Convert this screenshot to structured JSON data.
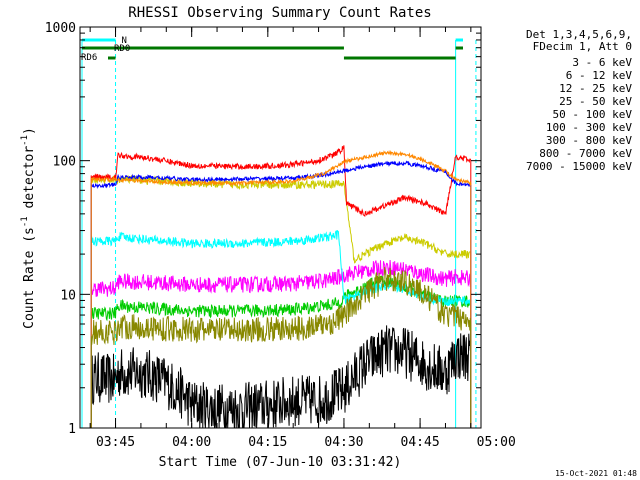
{
  "chart_data": {
    "type": "line",
    "title": "RHESSI Observing Summary Count Rates",
    "xlabel": "Start Time (07-Jun-10 03:31:42)",
    "ylabel_main": "Count Rate (s",
    "ylabel_sup1": "-1",
    "ylabel_mid": " detector",
    "ylabel_sup2": "-1",
    "ylabel_end": ")",
    "yscale": "log",
    "ylim": [
      1,
      1000
    ],
    "xlim": [
      -2,
      77
    ],
    "x_unit": "minutes after 03:40",
    "x_ticks": [
      {
        "label": "03:45",
        "x": 5
      },
      {
        "label": "04:00",
        "x": 20
      },
      {
        "label": "04:15",
        "x": 35
      },
      {
        "label": "04:30",
        "x": 50
      },
      {
        "label": "04:45",
        "x": 65
      },
      {
        "label": "05:00",
        "x": 80
      }
    ],
    "y_ticks": [
      {
        "label": "1",
        "y": 1
      },
      {
        "label": "10",
        "y": 10
      },
      {
        "label": "100",
        "y": 100
      },
      {
        "label": "1000",
        "y": 1000
      }
    ],
    "legend": {
      "placement": "right",
      "header1": "Det 1,3,4,5,6,9,",
      "header2": "FDecim 1, Att 0",
      "entries": [
        {
          "label": "3 - 6 keV",
          "color": "#000000"
        },
        {
          "label": "6 - 12 keV",
          "color": "#ff00ff"
        },
        {
          "label": "12 - 25 keV",
          "color": "#00cc00"
        },
        {
          "label": "25 - 50 keV",
          "color": "#00ffff"
        },
        {
          "label": "50 - 100 keV",
          "color": "#cccc00"
        },
        {
          "label": "100 - 300 keV",
          "color": "#ff0000"
        },
        {
          "label": "300 - 800 keV",
          "color": "#0000ff"
        },
        {
          "label": "800 - 7000 keV",
          "color": "#ff8800"
        },
        {
          "label": "7000 - 15000 keV",
          "color": "#888800"
        }
      ]
    },
    "flags": {
      "n_label": "N",
      "rd0_label": "RD0",
      "rd6_label": "RD6",
      "night_color": "#00ffff",
      "rd_color": "#007700"
    },
    "series": [
      {
        "name": "3 - 6 keV",
        "color": "#000000",
        "noise": 0.45,
        "points": [
          [
            0.2,
            2.3
          ],
          [
            1,
            2.4
          ],
          [
            4,
            2.3
          ],
          [
            5,
            2.3
          ],
          [
            5.5,
            2.6
          ],
          [
            10,
            2.6
          ],
          [
            13,
            2.4
          ],
          [
            15,
            2.2
          ],
          [
            18,
            1.8
          ],
          [
            20,
            1.5
          ],
          [
            24,
            1.4
          ],
          [
            30,
            1.4
          ],
          [
            36,
            1.5
          ],
          [
            40,
            1.6
          ],
          [
            45,
            1.6
          ],
          [
            47,
            1.7
          ],
          [
            50,
            1.9
          ],
          [
            54,
            3.0
          ],
          [
            58,
            3.8
          ],
          [
            62,
            3.7
          ],
          [
            66,
            3.0
          ],
          [
            70,
            2.6
          ],
          [
            72,
            3.5
          ],
          [
            75,
            3.5
          ]
        ]
      },
      {
        "name": "6 - 12 keV",
        "color": "#ff00ff",
        "noise": 0.14,
        "points": [
          [
            0.2,
            11
          ],
          [
            5,
            11
          ],
          [
            5.5,
            12.5
          ],
          [
            12,
            12.3
          ],
          [
            20,
            11.8
          ],
          [
            30,
            11.8
          ],
          [
            40,
            12
          ],
          [
            45,
            12.5
          ],
          [
            48,
            13
          ],
          [
            50,
            14
          ],
          [
            54,
            15
          ],
          [
            58,
            16
          ],
          [
            62,
            15.5
          ],
          [
            66,
            14
          ],
          [
            70,
            13
          ],
          [
            72,
            13.5
          ],
          [
            75,
            13
          ]
        ]
      },
      {
        "name": "12 - 25 keV",
        "color": "#00cc00",
        "noise": 0.11,
        "points": [
          [
            0.2,
            7.2
          ],
          [
            5,
            7.2
          ],
          [
            5.5,
            8.2
          ],
          [
            12,
            7.9
          ],
          [
            20,
            7.5
          ],
          [
            30,
            7.5
          ],
          [
            40,
            7.7
          ],
          [
            46,
            8.2
          ],
          [
            49,
            8.6
          ],
          [
            50,
            9.5
          ],
          [
            53,
            10.8
          ],
          [
            56,
            12.2
          ],
          [
            58,
            12.5
          ],
          [
            62,
            11.5
          ],
          [
            66,
            9.8
          ],
          [
            70,
            8.8
          ],
          [
            72,
            9
          ],
          [
            75,
            8.8
          ]
        ]
      },
      {
        "name": "25 - 50 keV",
        "color": "#00ffff",
        "noise": 0.08,
        "points": [
          [
            0.2,
            25
          ],
          [
            5,
            25
          ],
          [
            5.5,
            27
          ],
          [
            12,
            25.5
          ],
          [
            20,
            24
          ],
          [
            30,
            24
          ],
          [
            40,
            25
          ],
          [
            46,
            26.5
          ],
          [
            49,
            28
          ],
          [
            50,
            9
          ],
          [
            54,
            10.5
          ],
          [
            58,
            11.5
          ],
          [
            62,
            11
          ],
          [
            66,
            9.5
          ],
          [
            70,
            8.8
          ],
          [
            72,
            9
          ],
          [
            75,
            8.8
          ]
        ]
      },
      {
        "name": "50 - 100 keV",
        "color": "#cccc00",
        "noise": 0.07,
        "points": [
          [
            0.2,
            72
          ],
          [
            5,
            72
          ],
          [
            5.5,
            73
          ],
          [
            12,
            71
          ],
          [
            20,
            68
          ],
          [
            30,
            66
          ],
          [
            40,
            66
          ],
          [
            50,
            67
          ],
          [
            52,
            18
          ],
          [
            58,
            24
          ],
          [
            62,
            26.5
          ],
          [
            66,
            24
          ],
          [
            70,
            20
          ],
          [
            72,
            20
          ],
          [
            75,
            20
          ]
        ]
      },
      {
        "name": "100 - 300 keV",
        "color": "#ff0000",
        "noise": 0.05,
        "points": [
          [
            0.2,
            75
          ],
          [
            5,
            75
          ],
          [
            5.5,
            110
          ],
          [
            12,
            104
          ],
          [
            20,
            92
          ],
          [
            30,
            90
          ],
          [
            38,
            92
          ],
          [
            44,
            98
          ],
          [
            48,
            110
          ],
          [
            50,
            125
          ],
          [
            50.5,
            48
          ],
          [
            54,
            40
          ],
          [
            58,
            46
          ],
          [
            62,
            53
          ],
          [
            66,
            48
          ],
          [
            70,
            40
          ],
          [
            72,
            108
          ],
          [
            75,
            100
          ]
        ]
      },
      {
        "name": "300 - 800 keV",
        "color": "#0000ff",
        "noise": 0.035,
        "points": [
          [
            0.2,
            65
          ],
          [
            5,
            66
          ],
          [
            5.5,
            75
          ],
          [
            12,
            75
          ],
          [
            20,
            72
          ],
          [
            30,
            73
          ],
          [
            40,
            74
          ],
          [
            46,
            78
          ],
          [
            50,
            84
          ],
          [
            54,
            90
          ],
          [
            58,
            95
          ],
          [
            62,
            96
          ],
          [
            66,
            90
          ],
          [
            70,
            82
          ],
          [
            72,
            68
          ],
          [
            75,
            65
          ]
        ]
      },
      {
        "name": "800 - 7000 keV",
        "color": "#ff8800",
        "noise": 0.03,
        "points": [
          [
            0.2,
            72
          ],
          [
            5,
            72
          ],
          [
            5.5,
            72
          ],
          [
            12,
            70
          ],
          [
            20,
            68
          ],
          [
            30,
            68
          ],
          [
            40,
            70
          ],
          [
            46,
            80
          ],
          [
            50,
            98
          ],
          [
            54,
            106
          ],
          [
            58,
            114
          ],
          [
            62,
            112
          ],
          [
            66,
            100
          ],
          [
            70,
            84
          ],
          [
            72,
            72
          ],
          [
            75,
            68
          ]
        ]
      },
      {
        "name": "7000 - 15000 keV",
        "color": "#888800",
        "noise": 0.22,
        "points": [
          [
            0.2,
            5.2
          ],
          [
            5,
            5.2
          ],
          [
            5.5,
            5.8
          ],
          [
            12,
            5.6
          ],
          [
            20,
            5.4
          ],
          [
            30,
            5.4
          ],
          [
            40,
            5.5
          ],
          [
            45,
            5.8
          ],
          [
            48,
            6.2
          ],
          [
            50,
            7
          ],
          [
            54,
            10
          ],
          [
            58,
            13
          ],
          [
            62,
            12.5
          ],
          [
            66,
            10
          ],
          [
            70,
            7
          ],
          [
            72,
            6.8
          ],
          [
            75,
            6.5
          ]
        ]
      }
    ]
  },
  "footer_date": "15-Oct-2021 01:48"
}
